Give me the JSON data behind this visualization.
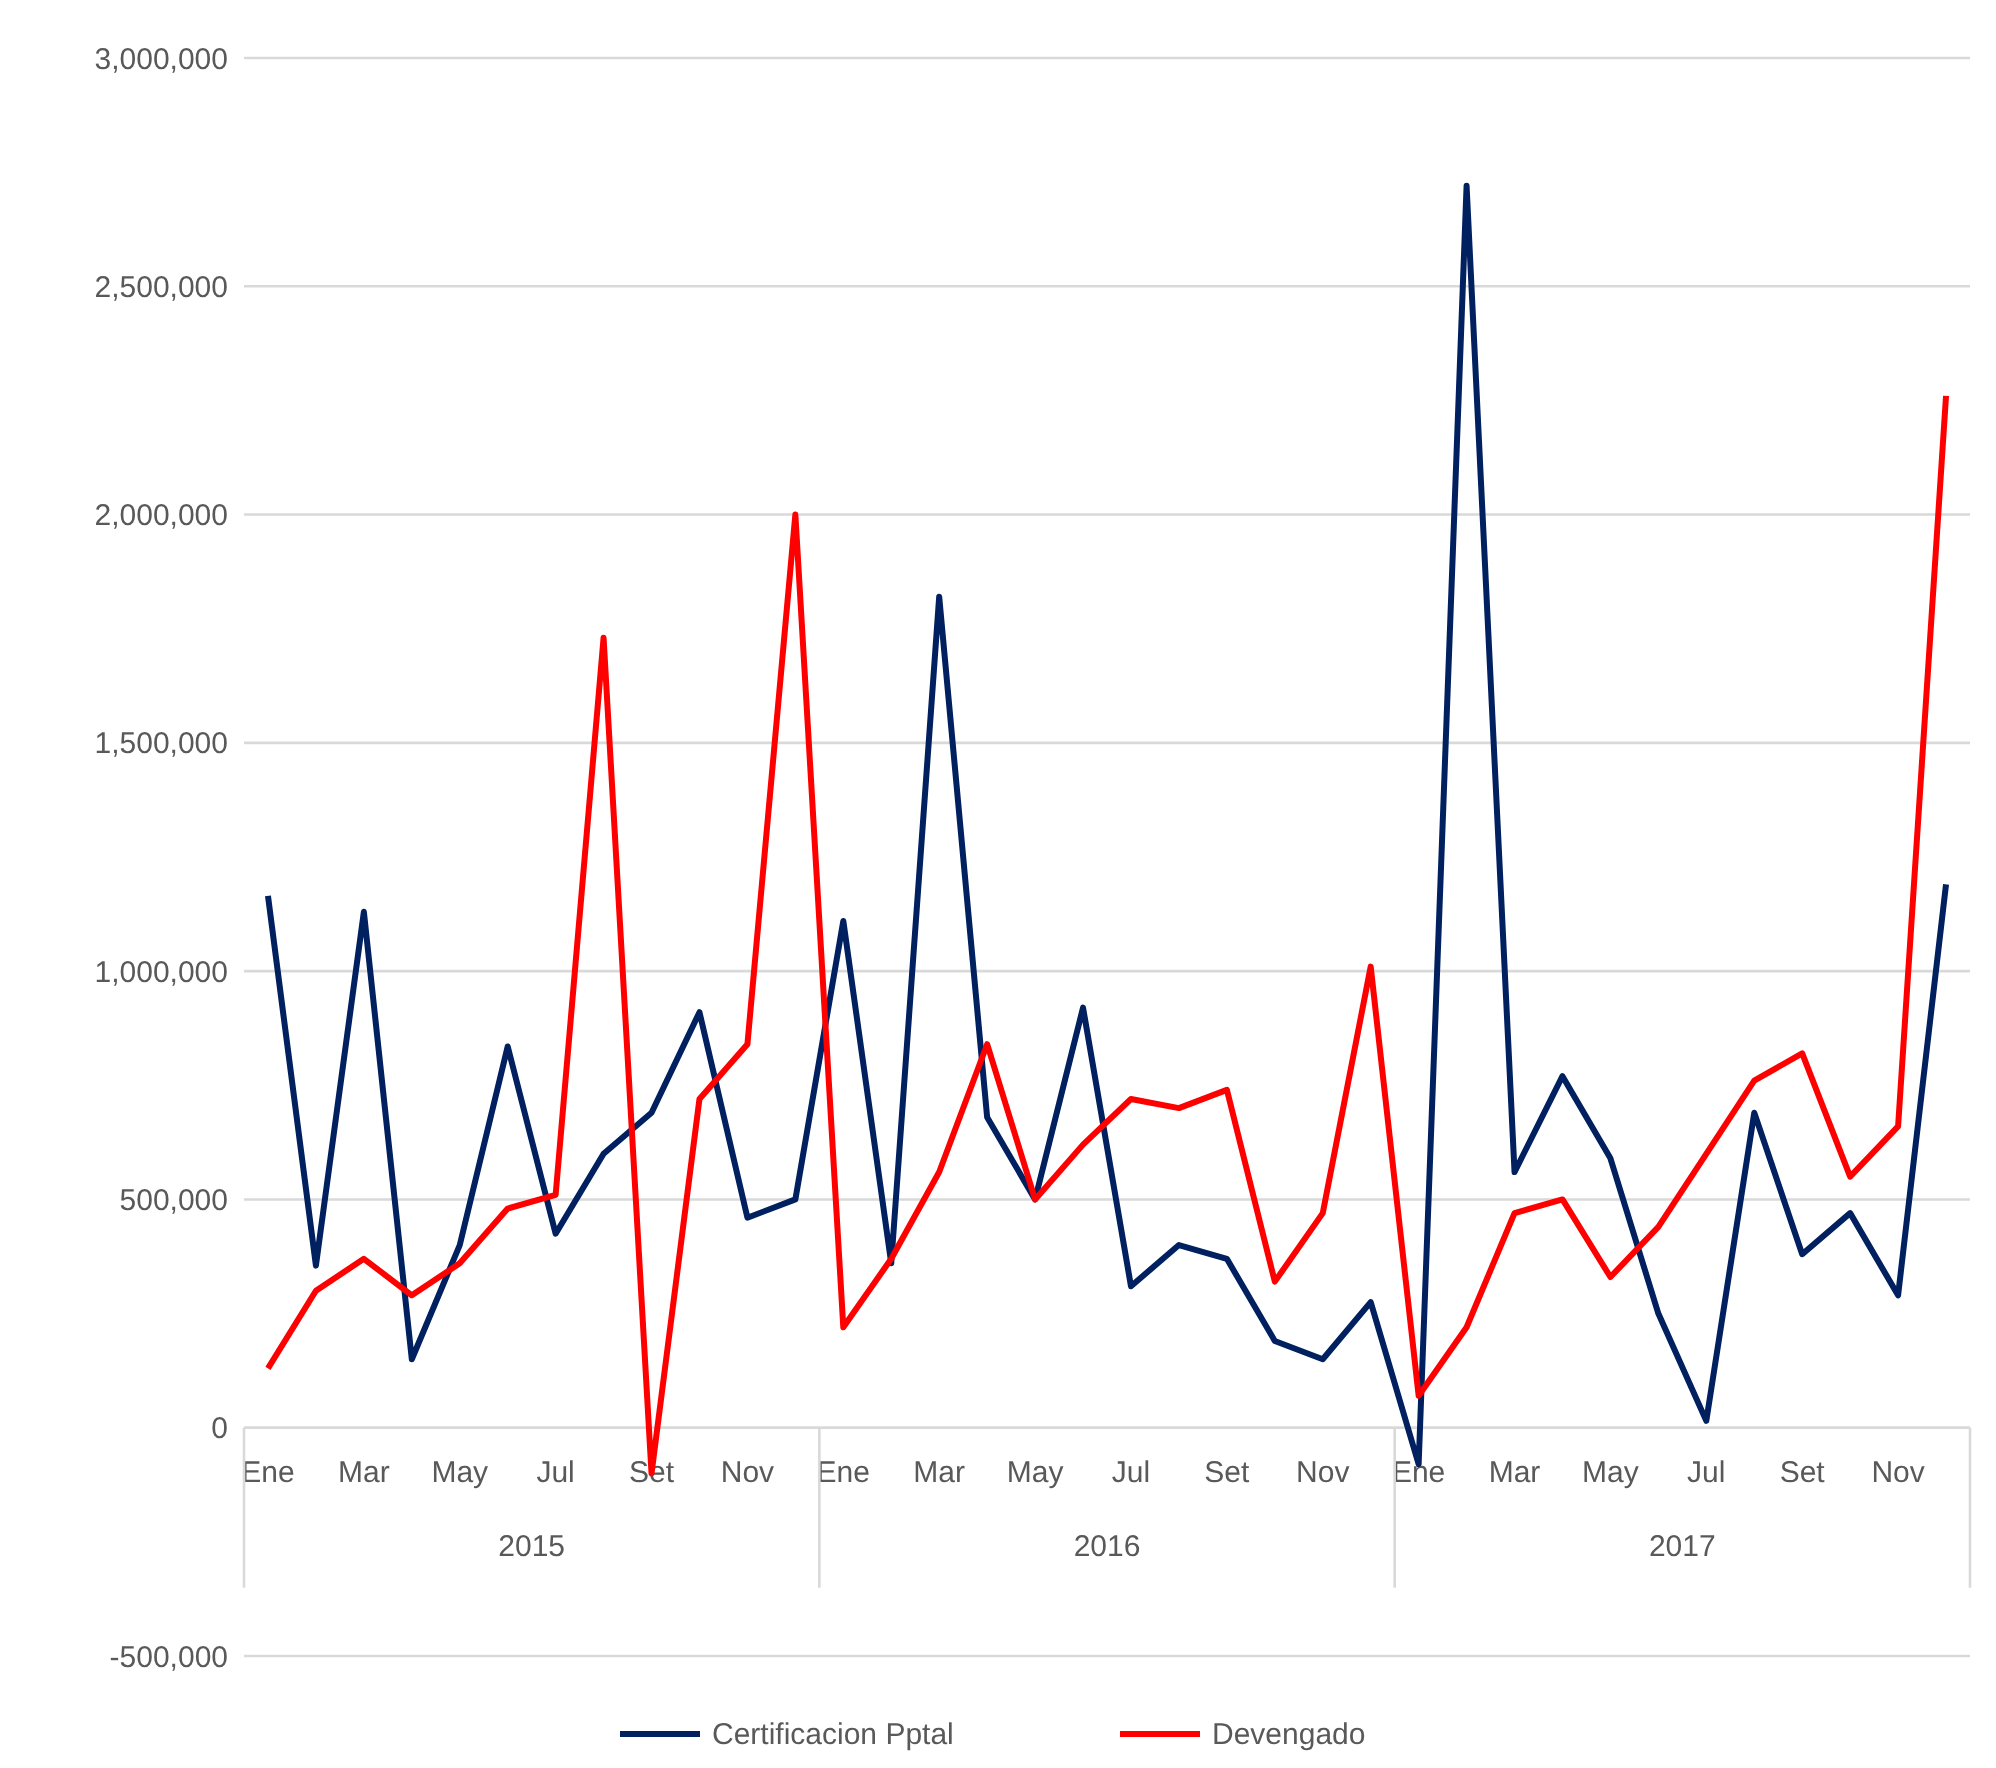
{
  "chart_data": {
    "type": "line",
    "categories": [
      "Ene",
      null,
      "Mar",
      null,
      "May",
      null,
      "Jul",
      null,
      "Set",
      null,
      "Nov",
      null,
      "Ene",
      null,
      "Mar",
      null,
      "May",
      null,
      "Jul",
      null,
      "Set",
      null,
      "Nov",
      null,
      "Ene",
      null,
      "Mar",
      null,
      "May",
      null,
      "Jul",
      null,
      "Set",
      null,
      "Nov",
      null
    ],
    "annotations": [
      "2015",
      "2016",
      "2017"
    ],
    "series": [
      {
        "name": "Certificacion Pptal",
        "color": "#002060",
        "values": [
          1165000,
          355000,
          1130000,
          150000,
          400000,
          835000,
          425000,
          600000,
          690000,
          910000,
          460000,
          500000,
          1110000,
          360000,
          1820000,
          680000,
          500000,
          920000,
          310000,
          400000,
          370000,
          190000,
          150000,
          275000,
          -80000,
          2720000,
          560000,
          770000,
          590000,
          250000,
          15000,
          690000,
          380000,
          470000,
          290000,
          1190000
        ]
      },
      {
        "name": "Devengado",
        "color": "#ff0000",
        "values": [
          130000,
          300000,
          370000,
          290000,
          360000,
          480000,
          510000,
          1730000,
          -100000,
          720000,
          840000,
          2000000,
          220000,
          370000,
          560000,
          840000,
          500000,
          620000,
          720000,
          700000,
          740000,
          320000,
          470000,
          1010000,
          70000,
          220000,
          470000,
          500000,
          330000,
          440000,
          600000,
          760000,
          820000,
          550000,
          660000,
          2260000
        ]
      }
    ],
    "ylim": [
      -500000,
      3000000
    ],
    "yticks": [
      {
        "value": -500000,
        "label": "-500,000"
      },
      {
        "value": 0,
        "label": "0"
      },
      {
        "value": 500000,
        "label": "500,000"
      },
      {
        "value": 1000000,
        "label": "1,000,000"
      },
      {
        "value": 1500000,
        "label": "1,500,000"
      },
      {
        "value": 2000000,
        "label": "2,000,000"
      },
      {
        "value": 2500000,
        "label": "2,500,000"
      },
      {
        "value": 3000000,
        "label": "3,000,000"
      }
    ],
    "grid": "y",
    "legend": "bottom",
    "line_style": "solid"
  }
}
